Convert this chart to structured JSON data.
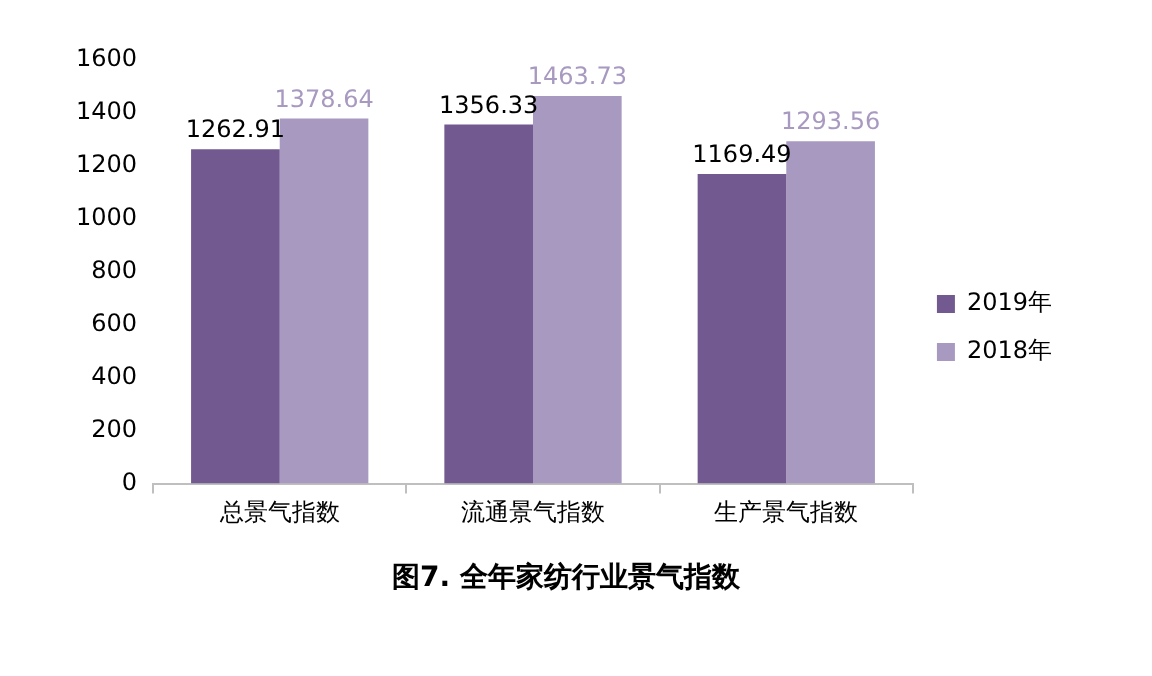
{
  "chart_data": {
    "type": "bar",
    "title": "图7. 全年家纺行业景气指数",
    "categories": [
      "总景气指数",
      "流通景气指数",
      "生产景气指数"
    ],
    "series": [
      {
        "name": "2019年",
        "color": "#72598f",
        "values": [
          1262.91,
          1356.33,
          1169.49
        ]
      },
      {
        "name": "2018年",
        "color": "#a899c0",
        "values": [
          1378.64,
          1463.73,
          1293.56
        ]
      }
    ],
    "ylim": [
      0,
      1600
    ],
    "yticks": [
      0,
      200,
      400,
      600,
      800,
      1000,
      1200,
      1400,
      1600
    ],
    "grid": false,
    "legend": "right",
    "data_labels": true
  }
}
